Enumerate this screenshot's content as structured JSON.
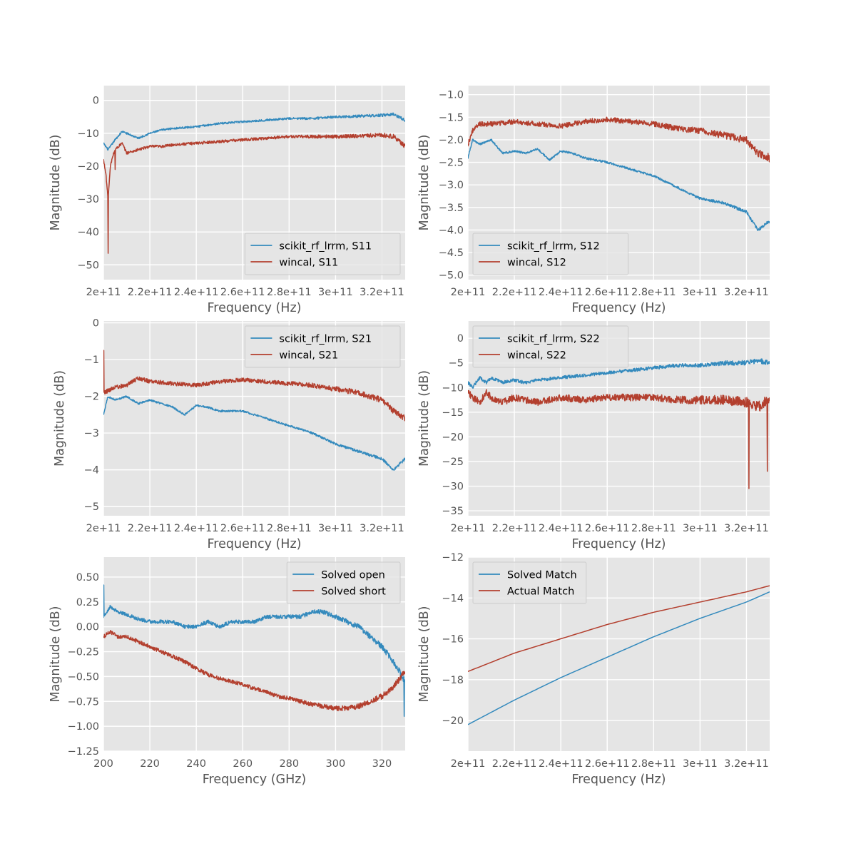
{
  "colors": {
    "series_a": "#348ABD",
    "series_b": "#B33F2E",
    "axes_bg": "#E5E5E5",
    "grid": "#FFFFFF",
    "tick_text": "#555555"
  },
  "chart_data": [
    {
      "type": "line",
      "xlabel": "Frequency (Hz)",
      "ylabel": "Magnitude (dB)",
      "xlim": [
        200000000000.0,
        330000000000.0
      ],
      "ylim": [
        -54.5,
        4.5
      ],
      "xticks": [
        200000000000.0,
        220000000000.0,
        240000000000.0,
        260000000000.0,
        280000000000.0,
        300000000000.0,
        320000000000.0
      ],
      "xtick_labels": [
        "2e+11",
        "2.2e+11",
        "2.4e+11",
        "2.6e+11",
        "2.8e+11",
        "3e+11",
        "3.2e+11"
      ],
      "yticks": [
        0,
        -10,
        -20,
        -30,
        -40,
        -50
      ],
      "ytick_labels": [
        "0",
        "−10",
        "−20",
        "−30",
        "−40",
        "−50"
      ],
      "grid": true,
      "legend_position": "lower-right",
      "series": [
        {
          "name": "scikit_rf_lrrm, S11",
          "color": "#348ABD",
          "x": [
            200000000000.0,
            202000000000.0,
            205000000000.0,
            208000000000.0,
            210000000000.0,
            215000000000.0,
            220000000000.0,
            225000000000.0,
            230000000000.0,
            240000000000.0,
            250000000000.0,
            260000000000.0,
            270000000000.0,
            280000000000.0,
            290000000000.0,
            300000000000.0,
            310000000000.0,
            320000000000.0,
            325000000000.0,
            330000000000.0
          ],
          "y": [
            -13,
            -15,
            -12,
            -9.5,
            -10,
            -11.5,
            -10,
            -9,
            -8.5,
            -8,
            -7,
            -6.5,
            -6,
            -5.5,
            -5.5,
            -5,
            -4.8,
            -4.5,
            -4.2,
            -6
          ],
          "noise": 1.0
        },
        {
          "name": "wincal, S11",
          "color": "#B33F2E",
          "x": [
            200000000000.0,
            201000000000.0,
            202000000000.0,
            203000000000.0,
            204000000000.0,
            205000000000.0,
            208000000000.0,
            210000000000.0,
            215000000000.0,
            220000000000.0,
            225000000000.0,
            230000000000.0,
            240000000000.0,
            250000000000.0,
            260000000000.0,
            270000000000.0,
            280000000000.0,
            290000000000.0,
            300000000000.0,
            310000000000.0,
            320000000000.0,
            325000000000.0,
            330000000000.0
          ],
          "y": [
            -18,
            -22,
            -30,
            -20,
            -17,
            -15,
            -13,
            -16,
            -15,
            -14,
            -14,
            -13.5,
            -13,
            -12.5,
            -12,
            -11.5,
            -11,
            -11,
            -11,
            -10.8,
            -10.5,
            -11,
            -14
          ],
          "noise": 1.5,
          "spikes": [
            [
              202000000000.0,
              -46.5
            ],
            [
              205000000000.0,
              -21
            ]
          ]
        }
      ]
    },
    {
      "type": "line",
      "xlabel": "Frequency (Hz)",
      "ylabel": "Magnitude (dB)",
      "xlim": [
        200000000000.0,
        330000000000.0
      ],
      "ylim": [
        -5.1,
        -0.8
      ],
      "xticks": [
        200000000000.0,
        220000000000.0,
        240000000000.0,
        260000000000.0,
        280000000000.0,
        300000000000.0,
        320000000000.0
      ],
      "xtick_labels": [
        "2e+11",
        "2.2e+11",
        "2.4e+11",
        "2.6e+11",
        "2.8e+11",
        "3e+11",
        "3.2e+11"
      ],
      "yticks": [
        -1.0,
        -1.5,
        -2.0,
        -2.5,
        -3.0,
        -3.5,
        -4.0,
        -4.5,
        -5.0
      ],
      "ytick_labels": [
        "−1.0",
        "−1.5",
        "−2.0",
        "−2.5",
        "−3.0",
        "−3.5",
        "−4.0",
        "−4.5",
        "−5.0"
      ],
      "grid": true,
      "legend_position": "lower-left",
      "series": [
        {
          "name": "scikit_rf_lrrm, S12",
          "color": "#348ABD",
          "x": [
            200000000000.0,
            202000000000.0,
            205000000000.0,
            210000000000.0,
            215000000000.0,
            220000000000.0,
            225000000000.0,
            230000000000.0,
            235000000000.0,
            240000000000.0,
            245000000000.0,
            250000000000.0,
            260000000000.0,
            270000000000.0,
            280000000000.0,
            290000000000.0,
            300000000000.0,
            310000000000.0,
            320000000000.0,
            325000000000.0,
            330000000000.0
          ],
          "y": [
            -2.4,
            -2.0,
            -2.1,
            -2.0,
            -2.3,
            -2.25,
            -2.3,
            -2.2,
            -2.45,
            -2.25,
            -2.3,
            -2.4,
            -2.5,
            -2.65,
            -2.8,
            -3.05,
            -3.3,
            -3.4,
            -3.6,
            -4.0,
            -3.8
          ],
          "noise": 0.08
        },
        {
          "name": "wincal, S12",
          "color": "#B33F2E",
          "x": [
            200000000000.0,
            202000000000.0,
            205000000000.0,
            210000000000.0,
            220000000000.0,
            230000000000.0,
            240000000000.0,
            250000000000.0,
            260000000000.0,
            270000000000.0,
            280000000000.0,
            290000000000.0,
            300000000000.0,
            310000000000.0,
            320000000000.0,
            325000000000.0,
            330000000000.0
          ],
          "y": [
            -2.1,
            -1.8,
            -1.65,
            -1.65,
            -1.6,
            -1.65,
            -1.7,
            -1.6,
            -1.55,
            -1.6,
            -1.65,
            -1.75,
            -1.8,
            -1.9,
            -2.0,
            -2.3,
            -2.4
          ],
          "noise": 0.2
        }
      ]
    },
    {
      "type": "line",
      "xlabel": "Frequency (Hz)",
      "ylabel": "Magnitude (dB)",
      "xlim": [
        200000000000.0,
        330000000000.0
      ],
      "ylim": [
        -5.25,
        0.05
      ],
      "xticks": [
        200000000000.0,
        220000000000.0,
        240000000000.0,
        260000000000.0,
        280000000000.0,
        300000000000.0,
        320000000000.0
      ],
      "xtick_labels": [
        "2e+11",
        "2.2e+11",
        "2.4e+11",
        "2.6e+11",
        "2.8e+11",
        "3e+11",
        "3.2e+11"
      ],
      "yticks": [
        0,
        -1,
        -2,
        -3,
        -4,
        -5
      ],
      "ytick_labels": [
        "0",
        "−1",
        "−2",
        "−3",
        "−4",
        "−5"
      ],
      "grid": true,
      "legend_position": "upper-right",
      "series": [
        {
          "name": "scikit_rf_lrrm, S21",
          "color": "#348ABD",
          "x": [
            200000000000.0,
            202000000000.0,
            205000000000.0,
            210000000000.0,
            215000000000.0,
            220000000000.0,
            225000000000.0,
            230000000000.0,
            235000000000.0,
            240000000000.0,
            245000000000.0,
            250000000000.0,
            260000000000.0,
            270000000000.0,
            280000000000.0,
            290000000000.0,
            300000000000.0,
            310000000000.0,
            320000000000.0,
            325000000000.0,
            330000000000.0
          ],
          "y": [
            -2.5,
            -2.0,
            -2.1,
            -2.0,
            -2.2,
            -2.1,
            -2.2,
            -2.3,
            -2.5,
            -2.25,
            -2.3,
            -2.4,
            -2.4,
            -2.6,
            -2.8,
            -3.0,
            -3.3,
            -3.5,
            -3.7,
            -4.0,
            -3.7
          ],
          "noise": 0.09
        },
        {
          "name": "wincal, S21",
          "color": "#B33F2E",
          "x": [
            200000000000.0,
            202000000000.0,
            205000000000.0,
            210000000000.0,
            215000000000.0,
            220000000000.0,
            230000000000.0,
            240000000000.0,
            250000000000.0,
            260000000000.0,
            270000000000.0,
            280000000000.0,
            290000000000.0,
            300000000000.0,
            310000000000.0,
            320000000000.0,
            325000000000.0,
            330000000000.0
          ],
          "y": [
            -1.9,
            -1.85,
            -1.75,
            -1.7,
            -1.5,
            -1.6,
            -1.65,
            -1.7,
            -1.6,
            -1.55,
            -1.6,
            -1.65,
            -1.7,
            -1.8,
            -1.9,
            -2.1,
            -2.4,
            -2.6
          ],
          "noise": 0.2,
          "spikes": [
            [
              200100000000.0,
              -0.75
            ]
          ]
        }
      ]
    },
    {
      "type": "line",
      "xlabel": "Frequency (Hz)",
      "ylabel": "Magnitude (dB)",
      "xlim": [
        200000000000.0,
        330000000000.0
      ],
      "ylim": [
        -36,
        3.5
      ],
      "xticks": [
        200000000000.0,
        220000000000.0,
        240000000000.0,
        260000000000.0,
        280000000000.0,
        300000000000.0,
        320000000000.0
      ],
      "xtick_labels": [
        "2e+11",
        "2.2e+11",
        "2.4e+11",
        "2.6e+11",
        "2.8e+11",
        "3e+11",
        "3.2e+11"
      ],
      "yticks": [
        0,
        -5,
        -10,
        -15,
        -20,
        -25,
        -30,
        -35
      ],
      "ytick_labels": [
        "0",
        "−5",
        "−10",
        "−15",
        "−20",
        "−25",
        "−30",
        "−35"
      ],
      "grid": true,
      "legend_position": "upper-left",
      "series": [
        {
          "name": "scikit_rf_lrrm, S22",
          "color": "#348ABD",
          "x": [
            200000000000.0,
            202000000000.0,
            205000000000.0,
            208000000000.0,
            210000000000.0,
            215000000000.0,
            220000000000.0,
            225000000000.0,
            230000000000.0,
            240000000000.0,
            250000000000.0,
            260000000000.0,
            270000000000.0,
            280000000000.0,
            290000000000.0,
            300000000000.0,
            310000000000.0,
            320000000000.0,
            325000000000.0,
            330000000000.0
          ],
          "y": [
            -9,
            -10,
            -8,
            -9,
            -8,
            -9,
            -8.5,
            -9,
            -8.5,
            -8,
            -7.5,
            -7,
            -6.5,
            -6,
            -5.5,
            -5.5,
            -5,
            -5,
            -4.5,
            -5
          ],
          "noise": 1.2
        },
        {
          "name": "wincal, S22",
          "color": "#B33F2E",
          "x": [
            200000000000.0,
            202000000000.0,
            205000000000.0,
            208000000000.0,
            210000000000.0,
            215000000000.0,
            220000000000.0,
            225000000000.0,
            230000000000.0,
            240000000000.0,
            250000000000.0,
            260000000000.0,
            270000000000.0,
            280000000000.0,
            290000000000.0,
            300000000000.0,
            310000000000.0,
            320000000000.0,
            325000000000.0,
            330000000000.0
          ],
          "y": [
            -11,
            -12,
            -13,
            -11,
            -12,
            -13,
            -12,
            -12.5,
            -13,
            -12,
            -12.5,
            -12,
            -12,
            -12,
            -12.5,
            -12.5,
            -12.5,
            -13,
            -14,
            -12
          ],
          "noise": 2.5,
          "spikes": [
            [
              321000000000.0,
              -30.5
            ],
            [
              329000000000.0,
              -27
            ]
          ]
        }
      ]
    },
    {
      "type": "line",
      "xlabel": "Frequency (GHz)",
      "ylabel": "Magnitude (dB)",
      "xlim": [
        200,
        330
      ],
      "ylim": [
        -1.25,
        0.7
      ],
      "xticks": [
        200,
        220,
        240,
        260,
        280,
        300,
        320
      ],
      "xtick_labels": [
        "200",
        "220",
        "240",
        "260",
        "280",
        "300",
        "320"
      ],
      "yticks": [
        0.5,
        0.25,
        0.0,
        -0.25,
        -0.5,
        -0.75,
        -1.0,
        -1.25
      ],
      "ytick_labels": [
        "0.50",
        "0.25",
        "0.00",
        "−0.25",
        "−0.50",
        "−0.75",
        "−1.00",
        "−1.25"
      ],
      "grid": true,
      "legend_position": "upper-right",
      "series": [
        {
          "name": "Solved open",
          "color": "#348ABD",
          "x": [
            200,
            203,
            206,
            210,
            215,
            220,
            225,
            230,
            235,
            240,
            245,
            250,
            255,
            260,
            265,
            270,
            275,
            280,
            285,
            290,
            295,
            300,
            305,
            310,
            315,
            320,
            325,
            330
          ],
          "y": [
            0.1,
            0.2,
            0.15,
            0.12,
            0.08,
            0.05,
            0.05,
            0.05,
            0.0,
            0.0,
            0.05,
            0.0,
            0.05,
            0.05,
            0.05,
            0.1,
            0.1,
            0.1,
            0.1,
            0.15,
            0.15,
            0.1,
            0.05,
            0.0,
            -0.1,
            -0.2,
            -0.35,
            -0.55
          ],
          "noise": 0.07,
          "spikes": [
            [
              200.2,
              0.42
            ],
            [
              329.5,
              -0.9
            ]
          ]
        },
        {
          "name": "Solved short",
          "color": "#B33F2E",
          "x": [
            200,
            203,
            206,
            210,
            215,
            220,
            225,
            230,
            235,
            240,
            245,
            250,
            255,
            260,
            265,
            270,
            275,
            280,
            285,
            290,
            295,
            300,
            305,
            310,
            315,
            320,
            325,
            330
          ],
          "y": [
            -0.1,
            -0.05,
            -0.1,
            -0.1,
            -0.15,
            -0.2,
            -0.25,
            -0.3,
            -0.35,
            -0.42,
            -0.48,
            -0.52,
            -0.55,
            -0.58,
            -0.62,
            -0.65,
            -0.7,
            -0.72,
            -0.75,
            -0.78,
            -0.8,
            -0.82,
            -0.82,
            -0.8,
            -0.75,
            -0.7,
            -0.6,
            -0.45
          ],
          "noise": 0.07
        }
      ]
    },
    {
      "type": "line",
      "xlabel": "Frequency (Hz)",
      "ylabel": "Magnitude (dB)",
      "xlim": [
        200000000000.0,
        330000000000.0
      ],
      "ylim": [
        -21.5,
        -12.0
      ],
      "xticks": [
        200000000000.0,
        220000000000.0,
        240000000000.0,
        260000000000.0,
        280000000000.0,
        300000000000.0,
        320000000000.0
      ],
      "xtick_labels": [
        "2e+11",
        "2.2e+11",
        "2.4e+11",
        "2.6e+11",
        "2.8e+11",
        "3e+11",
        "3.2e+11"
      ],
      "yticks": [
        -12,
        -14,
        -16,
        -18,
        -20
      ],
      "ytick_labels": [
        "−12",
        "−14",
        "−16",
        "−18",
        "−20"
      ],
      "grid": true,
      "legend_position": "upper-left",
      "series": [
        {
          "name": "Solved Match",
          "color": "#348ABD",
          "x": [
            200000000000.0,
            220000000000.0,
            240000000000.0,
            260000000000.0,
            280000000000.0,
            300000000000.0,
            320000000000.0,
            330000000000.0
          ],
          "y": [
            -20.2,
            -19.0,
            -17.9,
            -16.9,
            -15.9,
            -15.0,
            -14.2,
            -13.7
          ],
          "noise": 0
        },
        {
          "name": "Actual Match",
          "color": "#B33F2E",
          "x": [
            200000000000.0,
            220000000000.0,
            240000000000.0,
            260000000000.0,
            280000000000.0,
            300000000000.0,
            320000000000.0,
            330000000000.0
          ],
          "y": [
            -17.6,
            -16.7,
            -16.0,
            -15.3,
            -14.7,
            -14.2,
            -13.7,
            -13.4
          ],
          "noise": 0
        }
      ]
    }
  ]
}
